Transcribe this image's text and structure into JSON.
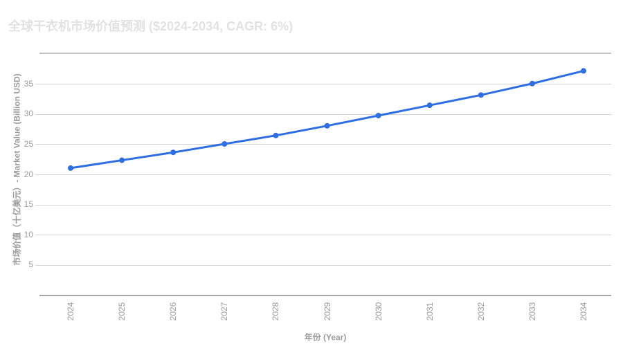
{
  "title": "全球干衣机市场价值预测 ($2024-2034, CAGR: 6%)",
  "chart_data": {
    "type": "line",
    "title": "全球干衣机市场价值预测 ($2024-2034, CAGR: 6%)",
    "xlabel": "年份 (Year)",
    "ylabel": "市场价值（十亿美元）- Market Value (Billion USD)",
    "categories": [
      2024,
      2025,
      2026,
      2027,
      2028,
      2029,
      2030,
      2031,
      2032,
      2033,
      2034
    ],
    "series": [
      {
        "name": "Market Value (Billion USD)",
        "values": [
          21.1,
          22.4,
          23.7,
          25.1,
          26.5,
          28.1,
          29.8,
          31.5,
          33.2,
          35.1,
          37.2
        ]
      }
    ],
    "ylim": [
      0,
      40
    ],
    "yticks": [
      5,
      10,
      15,
      20,
      25,
      30,
      35
    ],
    "grid": true,
    "legend_position": "none",
    "colors": {
      "line": "#2e6ee3",
      "point": "#2e6ee3",
      "gridline": "#d4d4d4",
      "axis_line": "#a6a6a6",
      "tick_text": "#9c9c9c",
      "title_text": "#e2e2e2",
      "background": "#ffffff"
    }
  }
}
